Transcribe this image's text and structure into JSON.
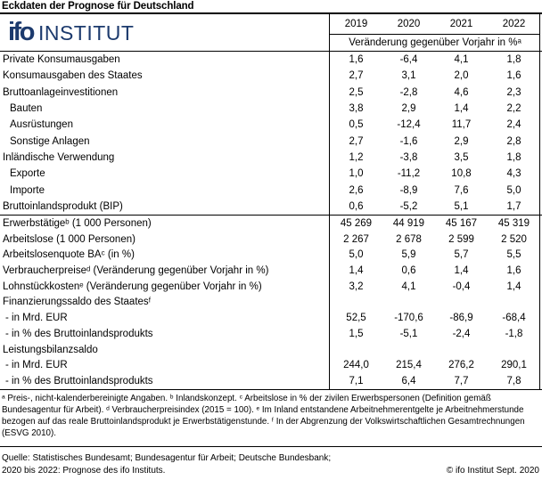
{
  "title": "Eckdaten der Prognose für Deutschland",
  "logo": {
    "brand": "ifo",
    "name": "INSTITUT",
    "color": "#1c3a6d"
  },
  "chart_data": {
    "type": "table",
    "title": "Eckdaten der Prognose für Deutschland",
    "columns": [
      "2019",
      "2020",
      "2021",
      "2022"
    ],
    "column_group_label": "Veränderung gegenüber Vorjahr in %ᵃ",
    "sections": [
      {
        "rows": [
          {
            "label": "Private Konsumausgaben",
            "indent": 0,
            "values": [
              "1,6",
              "-6,4",
              "4,1",
              "1,8"
            ]
          },
          {
            "label": "Konsumausgaben des Staates",
            "indent": 0,
            "values": [
              "2,7",
              "3,1",
              "2,0",
              "1,6"
            ]
          },
          {
            "label": "Bruttoanlageinvestitionen",
            "indent": 0,
            "values": [
              "2,5",
              "-2,8",
              "4,6",
              "2,3"
            ]
          },
          {
            "label": "Bauten",
            "indent": 1,
            "values": [
              "3,8",
              "2,9",
              "1,4",
              "2,2"
            ]
          },
          {
            "label": "Ausrüstungen",
            "indent": 1,
            "values": [
              "0,5",
              "-12,4",
              "11,7",
              "2,4"
            ]
          },
          {
            "label": "Sonstige Anlagen",
            "indent": 1,
            "values": [
              "2,7",
              "-1,6",
              "2,9",
              "2,8"
            ]
          },
          {
            "label": "Inländische Verwendung",
            "indent": 0,
            "values": [
              "1,2",
              "-3,8",
              "3,5",
              "1,8"
            ]
          },
          {
            "label": "Exporte",
            "indent": 1,
            "values": [
              "1,0",
              "-11,2",
              "10,8",
              "4,3"
            ]
          },
          {
            "label": "Importe",
            "indent": 1,
            "values": [
              "2,6",
              "-8,9",
              "7,6",
              "5,0"
            ]
          },
          {
            "label": "Bruttoinlandsprodukt (BIP)",
            "indent": 0,
            "values": [
              "0,6",
              "-5,2",
              "5,1",
              "1,7"
            ]
          }
        ]
      },
      {
        "rows": [
          {
            "label": "Erwerbstätigeᵇ (1 000 Personen)",
            "indent": 0,
            "values": [
              "45 269",
              "44 919",
              "45 167",
              "45 319"
            ]
          },
          {
            "label": "Arbeitslose (1 000 Personen)",
            "indent": 0,
            "values": [
              "2 267",
              "2 678",
              "2 599",
              "2 520"
            ]
          },
          {
            "label": "Arbeitslosenquote BAᶜ (in %)",
            "indent": 0,
            "values": [
              "5,0",
              "5,9",
              "5,7",
              "5,5"
            ]
          },
          {
            "label": "Verbraucherpreiseᵈ (Veränderung gegenüber Vorjahr in %)",
            "indent": 0,
            "values": [
              "1,4",
              "0,6",
              "1,4",
              "1,6"
            ]
          },
          {
            "label": "Lohnstückkostenᵉ (Veränderung gegenüber Vorjahr in %)",
            "indent": 0,
            "values": [
              "3,2",
              "4,1",
              "-0,4",
              "1,4"
            ]
          },
          {
            "label": "Finanzierungssaldo des Staatesᶠ",
            "indent": 0,
            "values": [
              "",
              "",
              "",
              ""
            ]
          },
          {
            "label": "- in Mrd. EUR",
            "indent": 2,
            "values": [
              "52,5",
              "-170,6",
              "-86,9",
              "-68,4"
            ]
          },
          {
            "label": "- in % des Bruttoinlandsprodukts",
            "indent": 2,
            "values": [
              "1,5",
              "-5,1",
              "-2,4",
              "-1,8"
            ]
          },
          {
            "label": "Leistungsbilanzsaldo",
            "indent": 0,
            "values": [
              "",
              "",
              "",
              ""
            ]
          },
          {
            "label": "- in Mrd. EUR",
            "indent": 2,
            "values": [
              "244,0",
              "215,4",
              "276,2",
              "290,1"
            ]
          },
          {
            "label": "- in % des Bruttoinlandsprodukts",
            "indent": 2,
            "values": [
              "7,1",
              "6,4",
              "7,7",
              "7,8"
            ]
          }
        ]
      }
    ]
  },
  "footnotes": "ᵃ Preis-, nicht-kalenderbereinigte Angaben. ᵇ Inlandskonzept. ᶜ Arbeitslose in % der zivilen Erwerbspersonen (Definition gemäß Bundesagentur für Arbeit). ᵈ Verbraucherpreisindex (2015 = 100). ᵉ Im Inland entstandene Arbeitnehmerentgelte je Arbeitnehmerstunde bezogen auf das reale Bruttoinlandsprodukt je Erwerbstätigenstunde. ᶠ In der Abgrenzung der Volkswirtschaftlichen Gesamtrechnungen (ESVG 2010).",
  "source": {
    "line1": "Quelle: Statistisches Bundesamt; Bundesagentur für Arbeit; Deutsche Bundesbank;",
    "line2": "2020 bis 2022: Prognose des ifo Instituts.",
    "copyright": "© ifo Institut Sept. 2020"
  }
}
